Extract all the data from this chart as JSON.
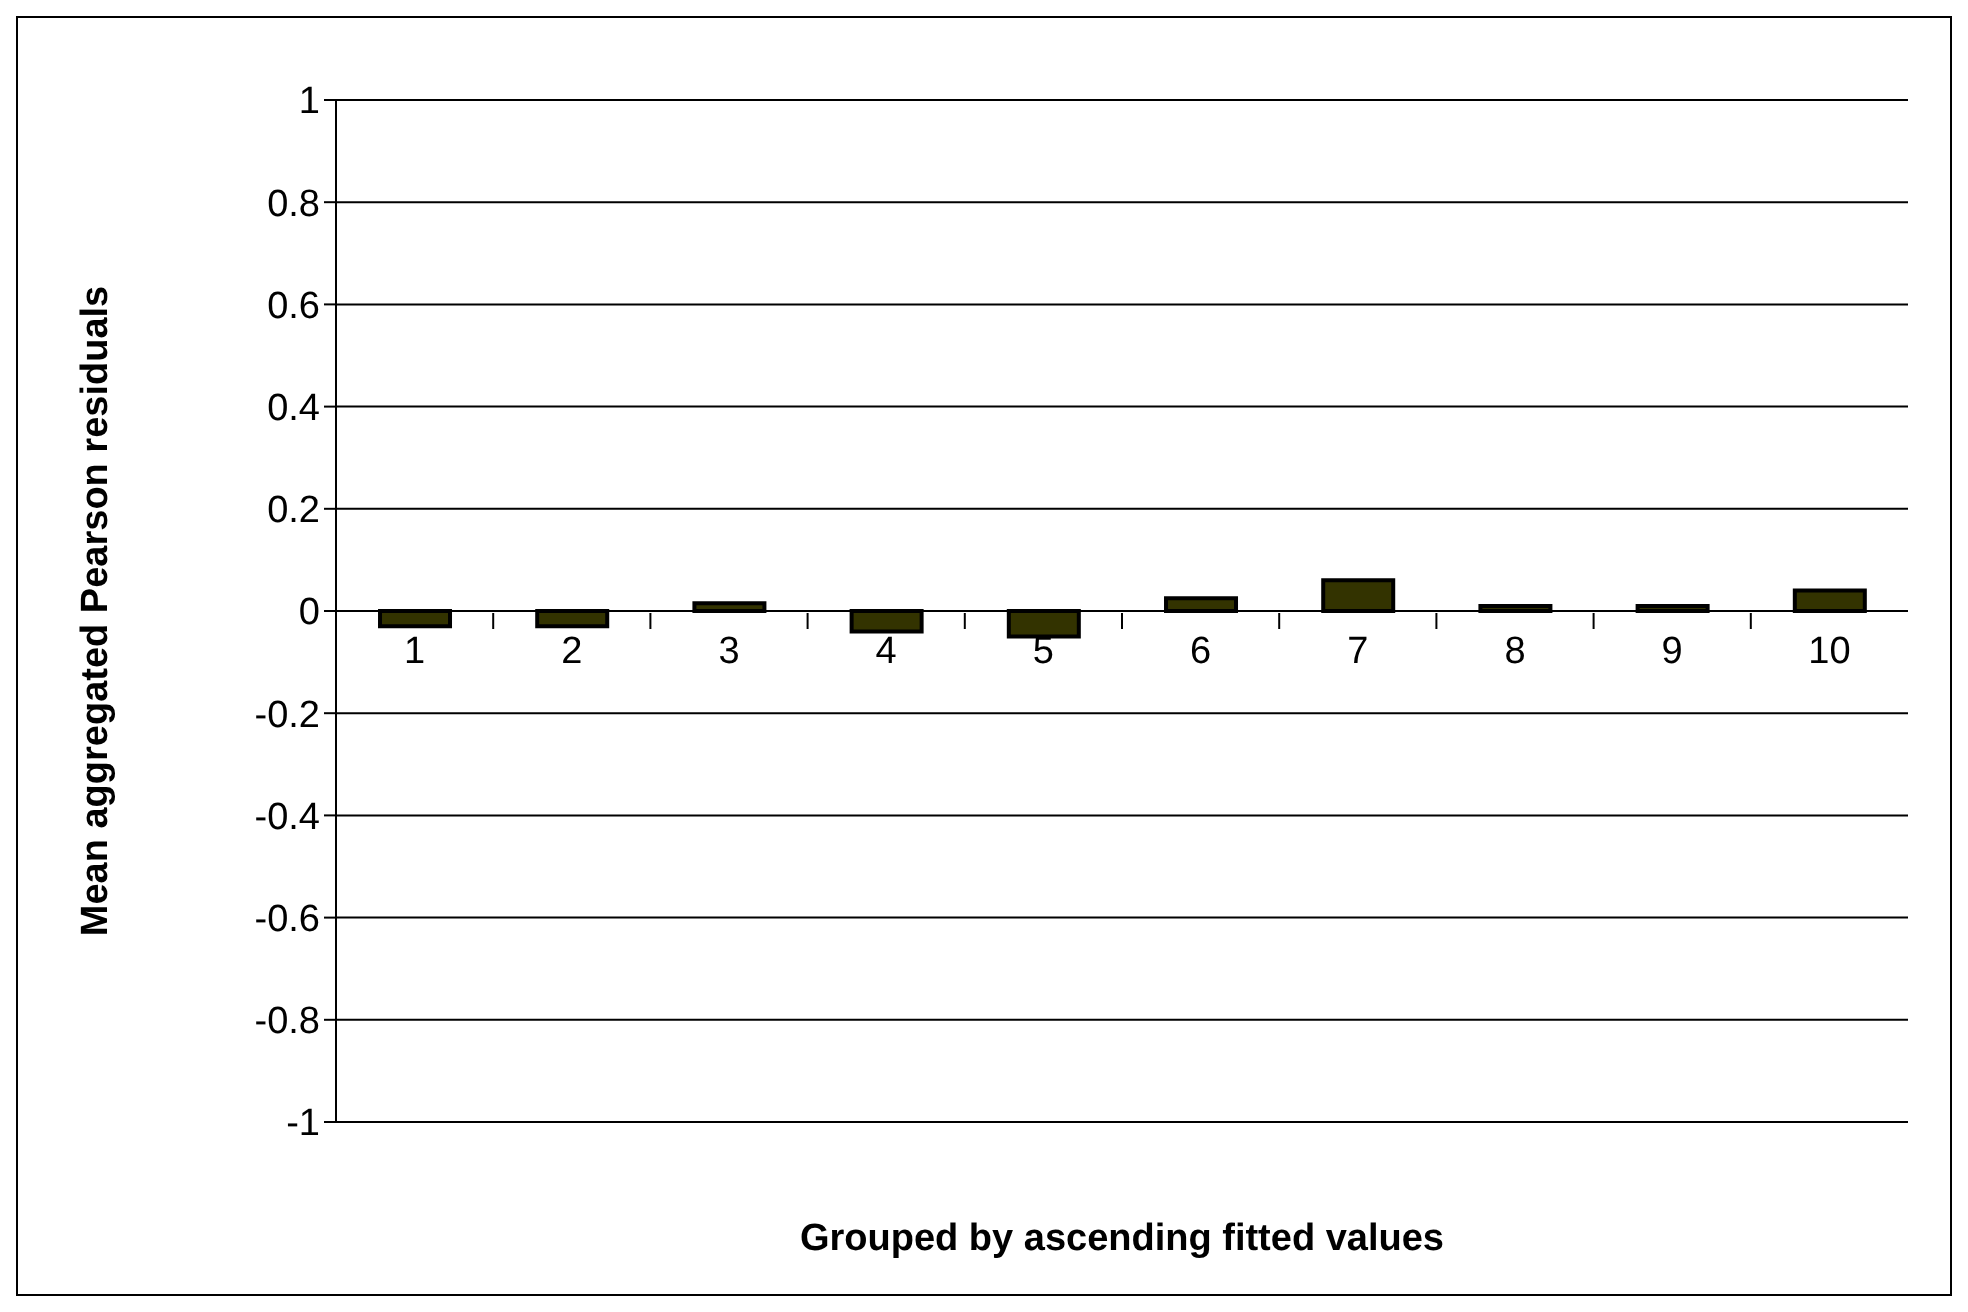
{
  "chart_data": {
    "type": "bar",
    "xlabel": "Grouped by ascending fitted values",
    "ylabel": "Mean aggregated Pearson residuals",
    "categories": [
      "1",
      "2",
      "3",
      "4",
      "5",
      "6",
      "7",
      "8",
      "9",
      "10"
    ],
    "values": [
      -0.03,
      -0.03,
      0.015,
      -0.04,
      -0.05,
      0.025,
      0.06,
      0.01,
      0.01,
      0.04
    ],
    "color": "#333300",
    "ylim": [
      -1,
      1
    ],
    "yticks": [
      -1,
      -0.8,
      -0.6,
      -0.4,
      -0.2,
      0,
      0.2,
      0.4,
      0.6,
      0.8,
      1
    ],
    "grid": "y",
    "legend": false
  }
}
